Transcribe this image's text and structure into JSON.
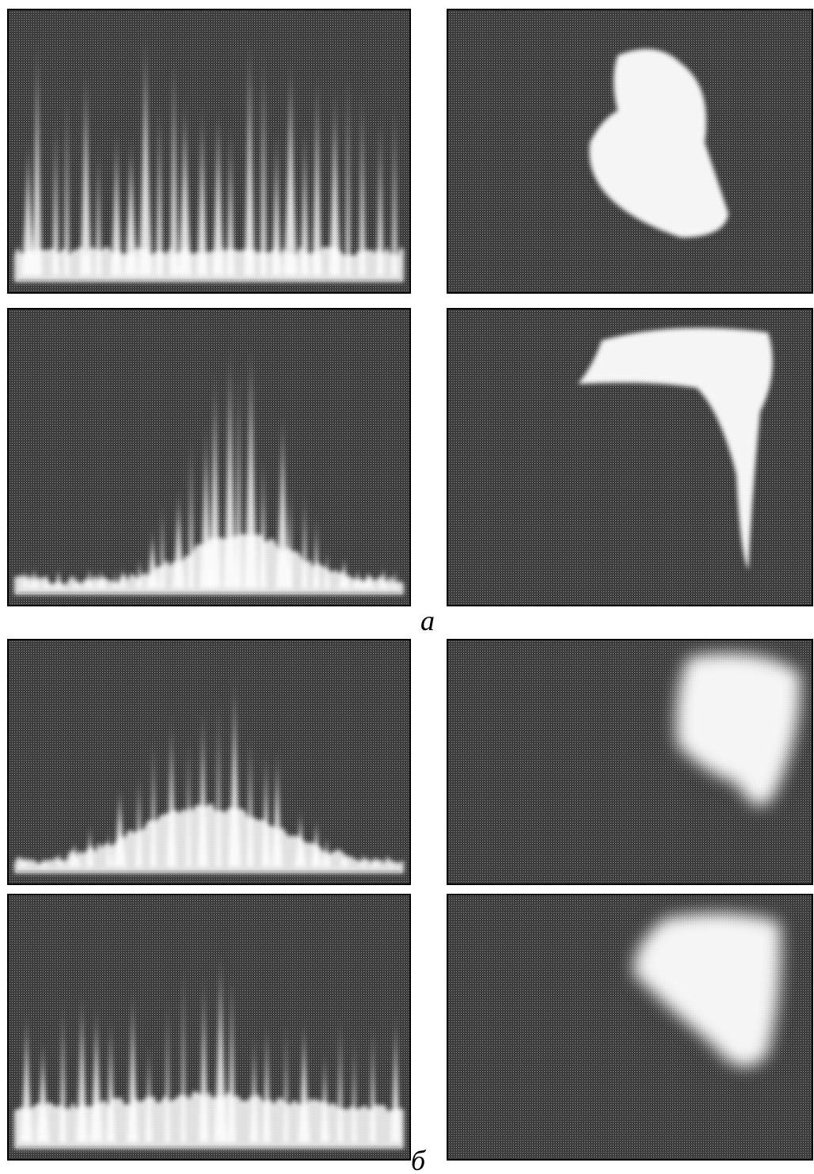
{
  "figure": {
    "panels": [
      {
        "label": "а"
      },
      {
        "label": "б"
      }
    ]
  }
}
